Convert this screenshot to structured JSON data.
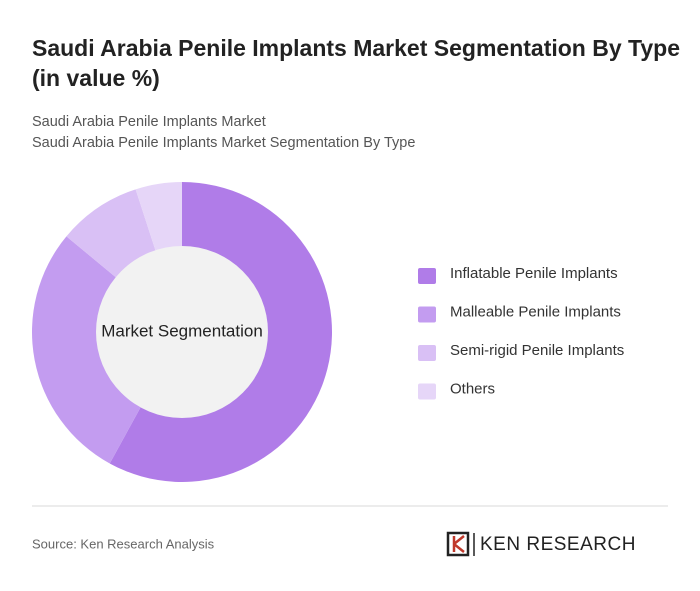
{
  "chart_data": {
    "type": "donut",
    "title": "Saudi Arabia Penile Implants Market Segmentation By Type (in value %)",
    "subtitle": [
      "Saudi Arabia Penile Implants Market",
      "Saudi Arabia Penile Implants Market Segmentation By Type"
    ],
    "center_label": "Market Segmentation",
    "categories": [
      "Inflatable Penile Implants",
      "Malleable Penile Implants",
      "Semi-rigid Penile Implants",
      "Others"
    ],
    "values": [
      58,
      28,
      9,
      5
    ],
    "colors": [
      "#b07ce8",
      "#c39cf0",
      "#d9c0f5",
      "#e6d6f8"
    ],
    "source": "Source: Ken Research Analysis",
    "brand": "KEN RESEARCH"
  }
}
